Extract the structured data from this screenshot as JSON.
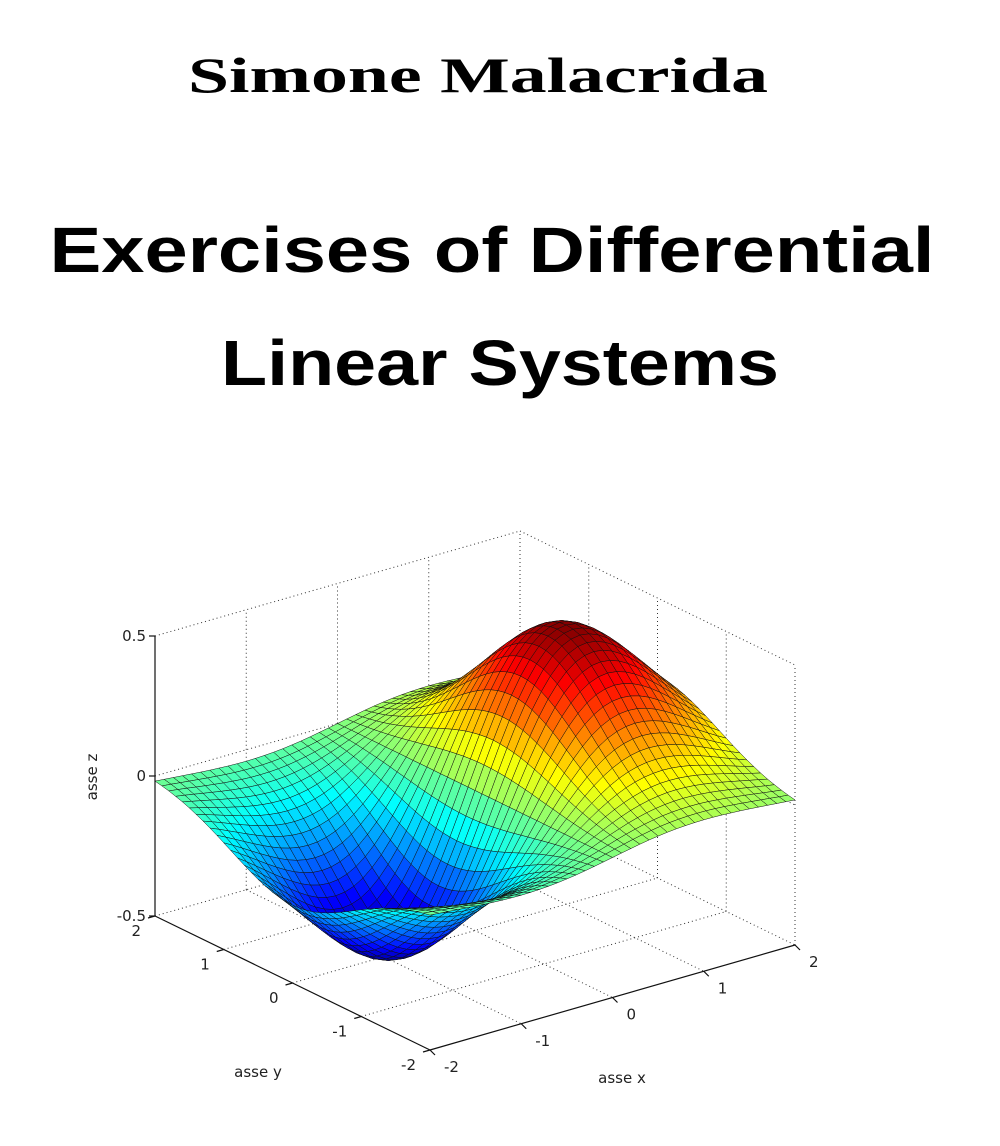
{
  "author": "Simone Malacrida",
  "title": [
    "Exercises of Differential",
    "Linear Systems"
  ],
  "figure": {
    "z_axis_label": "asse z",
    "y_axis_label": "asse y",
    "x_axis_label": "asse x",
    "zticks": [
      "0.5",
      "0",
      "-0.5"
    ],
    "yticks": [
      "2",
      "1",
      "0",
      "-1",
      "-2"
    ],
    "xticks": [
      "-2",
      "-1",
      "0",
      "1",
      "2"
    ]
  }
}
